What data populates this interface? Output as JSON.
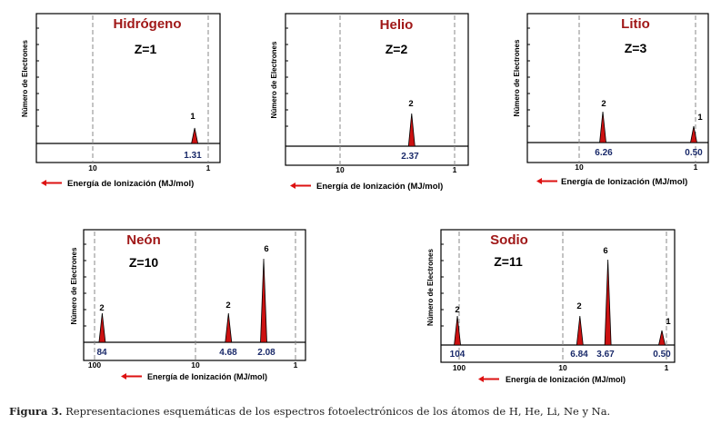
{
  "chart_data": [
    {
      "type": "spectrum",
      "title": "Hidrógeno",
      "zlabel": "Z=1",
      "ylabel": "Número de Electrones",
      "xlabel": "Energía de Ionización (MJ/mol)",
      "xscale": "log",
      "xreversed": true,
      "ticks": [
        "10",
        "1"
      ],
      "peaks": [
        {
          "energy": 1.31,
          "label": "1.31",
          "electrons": 1,
          "count_label": "1"
        }
      ]
    },
    {
      "type": "spectrum",
      "title": "Helio",
      "zlabel": "Z=2",
      "ylabel": "Número de Electrones",
      "xlabel": "Energía de Ionización (MJ/mol)",
      "xscale": "log",
      "xreversed": true,
      "ticks": [
        "10",
        "1"
      ],
      "peaks": [
        {
          "energy": 2.37,
          "label": "2.37",
          "electrons": 2,
          "count_label": "2"
        }
      ]
    },
    {
      "type": "spectrum",
      "title": "Litio",
      "zlabel": "Z=3",
      "ylabel": "Número de Electrones",
      "xlabel": "Energía de Ionización (MJ/mol)",
      "xscale": "log",
      "xreversed": true,
      "ticks": [
        "10",
        "1"
      ],
      "peaks": [
        {
          "energy": 6.26,
          "label": "6.26",
          "electrons": 2,
          "count_label": "2"
        },
        {
          "energy": 0.5,
          "label": "0.50",
          "electrons": 1,
          "count_label": "1"
        }
      ]
    },
    {
      "type": "spectrum",
      "title": "Neón",
      "zlabel": "Z=10",
      "ylabel": "Número de Electrones",
      "xlabel": "Energía de Ionización (MJ/mol)",
      "xscale": "log",
      "xreversed": true,
      "ticks": [
        "100",
        "10",
        "1"
      ],
      "peaks": [
        {
          "energy": 84,
          "label": "84",
          "electrons": 2,
          "count_label": "2"
        },
        {
          "energy": 4.68,
          "label": "4.68",
          "electrons": 2,
          "count_label": "2"
        },
        {
          "energy": 2.08,
          "label": "2.08",
          "electrons": 6,
          "count_label": "6"
        }
      ]
    },
    {
      "type": "spectrum",
      "title": "Sodio",
      "zlabel": "Z=11",
      "ylabel": "Número de Electrones",
      "xlabel": "Energía de Ionización (MJ/mol)",
      "xscale": "log",
      "xreversed": true,
      "ticks": [
        "100",
        "10",
        "1"
      ],
      "peaks": [
        {
          "energy": 104,
          "label": "104",
          "electrons": 2,
          "count_label": "2"
        },
        {
          "energy": 6.84,
          "label": "6.84",
          "electrons": 2,
          "count_label": "2"
        },
        {
          "energy": 3.67,
          "label": "3.67",
          "electrons": 6,
          "count_label": "6"
        },
        {
          "energy": 0.5,
          "label": "0.50",
          "electrons": 1,
          "count_label": "1"
        }
      ]
    }
  ],
  "caption": {
    "label": "Figura 3.",
    "text": "Representaciones esquemáticas de los espectros fotoelectrónicos de los átomos de H, He, Li, Ne y Na."
  },
  "colors": {
    "peak": "#cc1111",
    "title": "#a01818",
    "value": "#1a2a6a",
    "arrow": "#dd1111"
  }
}
